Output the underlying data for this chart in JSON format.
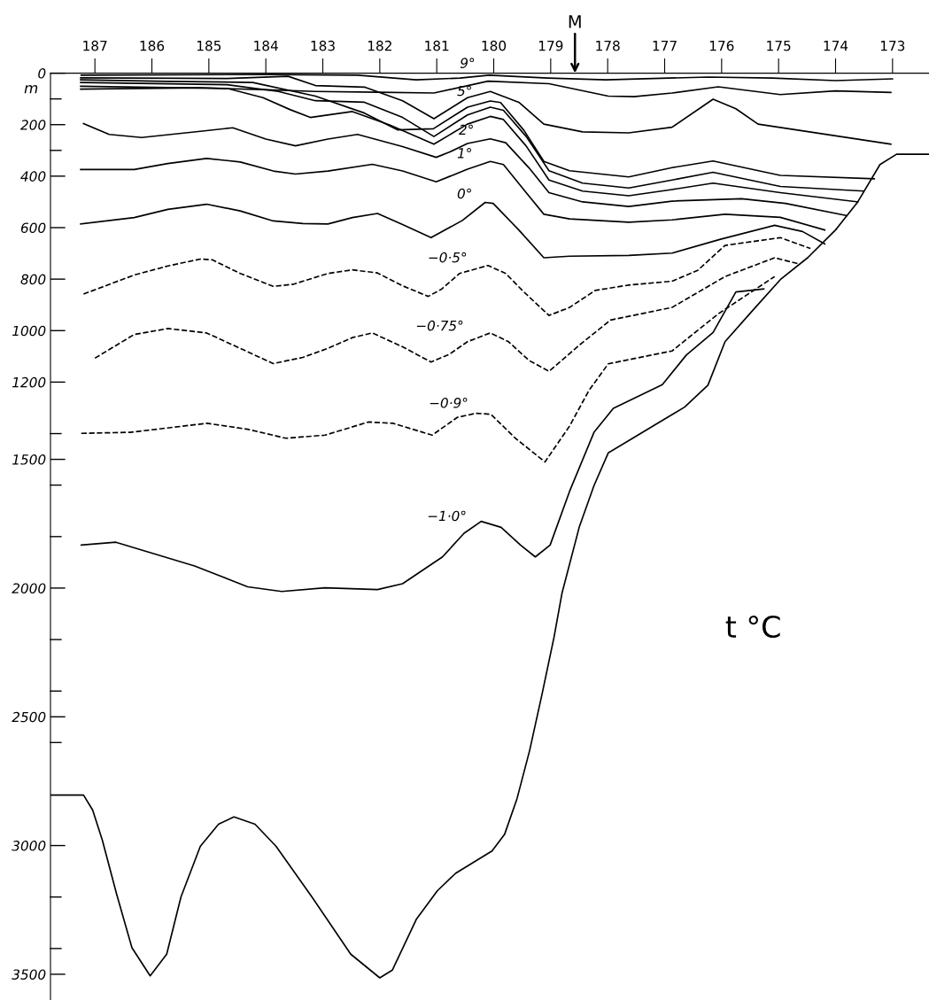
{
  "chart_data": {
    "type": "line",
    "title": "t °C",
    "ylabel": "m",
    "xlim": [
      187.78,
      172.36
    ],
    "ylim": [
      3600,
      0
    ],
    "xticks": [
      187,
      186,
      185,
      184,
      183,
      182,
      181,
      180,
      179,
      178,
      177,
      176,
      175,
      174,
      173
    ],
    "yticks": [
      0,
      {
        "value": 100,
        "label": null
      },
      200,
      {
        "value": 300,
        "label": null
      },
      400,
      600,
      800,
      1000,
      1200,
      {
        "value": 1400,
        "label": null
      },
      1500,
      {
        "value": 1600,
        "label": null
      },
      {
        "value": 1800,
        "label": null
      },
      2000,
      {
        "value": 2200,
        "label": null
      },
      {
        "value": 2400,
        "label": null
      },
      2500,
      {
        "value": 2600,
        "label": null
      },
      3000,
      {
        "value": 3200,
        "label": null
      },
      {
        "value": 3400,
        "label": null
      },
      3500
    ],
    "grid": false,
    "legend": false,
    "marker": "none",
    "series": [
      {
        "color": "#000000",
        "line_style": "solid",
        "x": [
          187.24,
          183.91,
          182.39,
          181.36,
          180.59,
          180.08,
          179.05,
          178.03,
          176.23,
          175.11,
          174.0,
          173.0
        ],
        "values": [
          8,
          5,
          8,
          26,
          19,
          8,
          19,
          26,
          15,
          19,
          29,
          22
        ]
      },
      {
        "color": "#000000",
        "line_style": "solid",
        "x": [
          187.25,
          185.15,
          184.09,
          183.13,
          182.04,
          181.05,
          180.1,
          179.03,
          177.99,
          177.54,
          176.87,
          176.06,
          174.97,
          174.0,
          173.03
        ],
        "values": [
          62,
          57,
          64,
          71,
          74,
          77,
          31,
          41,
          89,
          91,
          77,
          53,
          83,
          69,
          75
        ]
      },
      {
        "color": "#000000",
        "line_style": "solid",
        "x": [
          187.25,
          184.68,
          183.61,
          183.13,
          182.27,
          181.6,
          181.05,
          180.46,
          180.06,
          179.56,
          179.12,
          178.44,
          177.63,
          176.87,
          176.15,
          175.75,
          175.36,
          173.03
        ],
        "values": [
          18,
          21,
          12,
          48,
          54,
          107,
          177,
          95,
          71,
          113,
          198,
          228,
          232,
          210,
          101,
          138,
          198,
          276
        ]
      },
      {
        "color": "#000000",
        "line_style": "solid",
        "x": [
          187.25,
          185.72,
          184.23,
          183.13,
          182.27,
          181.69,
          181.06,
          180.46,
          180.06,
          179.88,
          179.47,
          179.12,
          178.67,
          177.63,
          176.87,
          176.15,
          174.97,
          173.32
        ],
        "values": [
          26,
          32,
          36,
          89,
          155,
          220,
          216,
          132,
          108,
          114,
          222,
          343,
          379,
          403,
          367,
          341,
          397,
          410
        ]
      },
      {
        "color": "#000000",
        "line_style": "solid",
        "x": [
          187.25,
          184.68,
          183.78,
          183.13,
          182.27,
          181.6,
          181.05,
          180.46,
          180.06,
          179.83,
          179.43,
          179.03,
          178.44,
          177.63,
          176.87,
          176.15,
          174.97,
          173.51
        ],
        "values": [
          36,
          45,
          71,
          107,
          113,
          172,
          246,
          162,
          132,
          144,
          246,
          379,
          427,
          446,
          415,
          385,
          440,
          458
        ]
      },
      {
        "color": "#000000",
        "line_style": "solid",
        "x": [
          187.25,
          184.68,
          184.05,
          183.57,
          183.22,
          182.48,
          181.82,
          181.05,
          180.46,
          180.06,
          179.83,
          179.43,
          179.03,
          178.44,
          177.63,
          176.87,
          176.15,
          174.97,
          173.61
        ],
        "values": [
          51,
          59,
          95,
          142,
          172,
          149,
          202,
          276,
          198,
          168,
          180,
          283,
          415,
          458,
          476,
          452,
          427,
          464,
          500
        ]
      },
      {
        "color": "#000000",
        "line_style": "solid",
        "x": [
          187.2,
          186.75,
          186.18,
          185.15,
          184.58,
          184.0,
          183.48,
          182.91,
          182.39,
          181.6,
          181.01,
          180.78,
          180.46,
          180.06,
          179.79,
          179.38,
          179.03,
          178.44,
          177.63,
          176.87,
          175.65,
          174.88,
          173.81
        ],
        "values": [
          196,
          238,
          250,
          226,
          212,
          256,
          282,
          256,
          238,
          285,
          327,
          307,
          273,
          255,
          270,
          368,
          464,
          500,
          518,
          497,
          488,
          506,
          553
        ]
      },
      {
        "color": "#000000",
        "line_style": "solid",
        "x": [
          187.25,
          186.31,
          185.72,
          185.04,
          184.45,
          183.87,
          183.48,
          182.91,
          182.13,
          181.6,
          181.01,
          180.46,
          180.06,
          179.83,
          179.43,
          179.12,
          178.67,
          177.63,
          176.87,
          175.94,
          174.97,
          174.19
        ],
        "values": [
          374,
          374,
          351,
          331,
          345,
          380,
          392,
          380,
          354,
          380,
          422,
          373,
          343,
          355,
          464,
          548,
          566,
          579,
          570,
          548,
          560,
          609
        ]
      },
      {
        "color": "#000000",
        "line_style": "solid",
        "x": [
          187.25,
          186.31,
          185.72,
          185.04,
          184.45,
          183.87,
          183.35,
          182.91,
          182.48,
          182.04,
          181.6,
          181.1,
          180.55,
          180.15,
          180.01,
          179.56,
          179.12,
          178.67,
          177.63,
          176.87,
          176.02,
          175.07,
          174.58,
          174.19
        ],
        "values": [
          586,
          561,
          529,
          509,
          535,
          574,
          584,
          586,
          561,
          545,
          588,
          639,
          572,
          502,
          506,
          609,
          717,
          711,
          708,
          699,
          645,
          591,
          615,
          663
        ]
      },
      {
        "color": "#000000",
        "line_style": "dashed",
        "x": [
          187.2,
          186.31,
          185.72,
          185.15,
          184.94,
          184.45,
          183.87,
          183.52,
          182.91,
          182.48,
          182.04,
          181.6,
          181.15,
          180.91,
          180.6,
          180.1,
          179.79,
          179.47,
          179.03,
          178.67,
          178.22,
          177.63,
          176.87,
          176.42,
          175.94,
          174.97,
          174.44
        ],
        "values": [
          858,
          784,
          749,
          722,
          725,
          778,
          828,
          820,
          778,
          764,
          776,
          826,
          867,
          838,
          778,
          747,
          778,
          850,
          941,
          910,
          844,
          823,
          808,
          766,
          669,
          639,
          681
        ]
      },
      {
        "color": "#000000",
        "line_style": "dashed",
        "x": [
          187.0,
          186.31,
          185.72,
          185.04,
          184.45,
          183.87,
          183.35,
          182.91,
          182.48,
          182.13,
          181.6,
          181.1,
          180.78,
          180.46,
          180.06,
          179.74,
          179.38,
          179.03,
          178.49,
          177.95,
          176.87,
          175.94,
          175.07,
          174.64
        ],
        "values": [
          1107,
          1015,
          992,
          1009,
          1069,
          1128,
          1104,
          1069,
          1027,
          1009,
          1063,
          1122,
          1092,
          1043,
          1009,
          1043,
          1116,
          1158,
          1055,
          959,
          910,
          790,
          717,
          741
        ]
      },
      {
        "color": "#000000",
        "line_style": "dashed",
        "x": [
          187.24,
          186.38,
          185.03,
          184.32,
          183.65,
          182.96,
          182.2,
          181.77,
          181.08,
          180.64,
          180.31,
          180.05,
          179.62,
          179.1,
          178.67,
          178.33,
          177.99,
          176.87,
          176.06,
          175.07
        ],
        "values": [
          1399,
          1395,
          1360,
          1383,
          1418,
          1406,
          1355,
          1360,
          1406,
          1337,
          1321,
          1325,
          1418,
          1510,
          1371,
          1233,
          1129,
          1079,
          935,
          790
        ]
      },
      {
        "color": "#000000",
        "line_style": "solid",
        "x": [
          187.24,
          186.63,
          185.25,
          184.32,
          183.72,
          182.96,
          182.04,
          181.6,
          180.9,
          180.52,
          180.22,
          179.87,
          179.53,
          179.27,
          179.01,
          178.67,
          178.24,
          177.9,
          177.04,
          176.62,
          176.15,
          175.75,
          175.26
        ],
        "values": [
          1833,
          1822,
          1914,
          1995,
          2013,
          1999,
          2006,
          1983,
          1879,
          1787,
          1741,
          1764,
          1833,
          1879,
          1833,
          1625,
          1395,
          1302,
          1210,
          1095,
          1007,
          850,
          838
        ]
      },
      {
        "color": "#000000",
        "line_style": "solid",
        "x": [
          187.78,
          187.2,
          187.04,
          186.87,
          186.62,
          186.35,
          186.03,
          185.74,
          185.49,
          185.15,
          184.83,
          184.56,
          184.19,
          183.82,
          183.19,
          182.51,
          182.0,
          181.78,
          181.36,
          180.99,
          180.67,
          180.03,
          179.81,
          179.59,
          179.37,
          179.15,
          178.94,
          178.8,
          178.5,
          178.24,
          177.99,
          177.47,
          176.65,
          176.24,
          175.94,
          175.46,
          174.97,
          174.49,
          174.0,
          173.61,
          173.22,
          172.93,
          172.36
        ],
        "values": [
          2804,
          2804,
          2862,
          2979,
          3188,
          3397,
          3506,
          3422,
          3200,
          3003,
          2917,
          2889,
          2917,
          3003,
          3200,
          3422,
          3514,
          3484,
          3287,
          3176,
          3108,
          3021,
          2957,
          2817,
          2631,
          2410,
          2189,
          2018,
          1764,
          1602,
          1475,
          1406,
          1297,
          1212,
          1043,
          923,
          802,
          717,
          609,
          500,
          355,
          315,
          315
        ]
      }
    ],
    "annotations": [
      "M",
      {
        "text": "9°",
        "x": 180.26,
        "y": 5
      },
      {
        "text": "5°",
        "x": 180.31,
        "y": 113
      },
      {
        "text": "2°",
        "x": 180.28,
        "y": 264
      },
      {
        "text": "1°",
        "x": 180.31,
        "y": 355
      },
      {
        "text": "0°",
        "x": 180.31,
        "y": 512
      },
      {
        "text": "−0·5°",
        "x": 180.4,
        "y": 760
      },
      {
        "text": "−0·75°",
        "x": 180.46,
        "y": 1025
      },
      {
        "text": "−0·9°",
        "x": 180.38,
        "y": 1325
      },
      {
        "text": "−1·0°",
        "x": 180.41,
        "y": 1764
      }
    ]
  }
}
